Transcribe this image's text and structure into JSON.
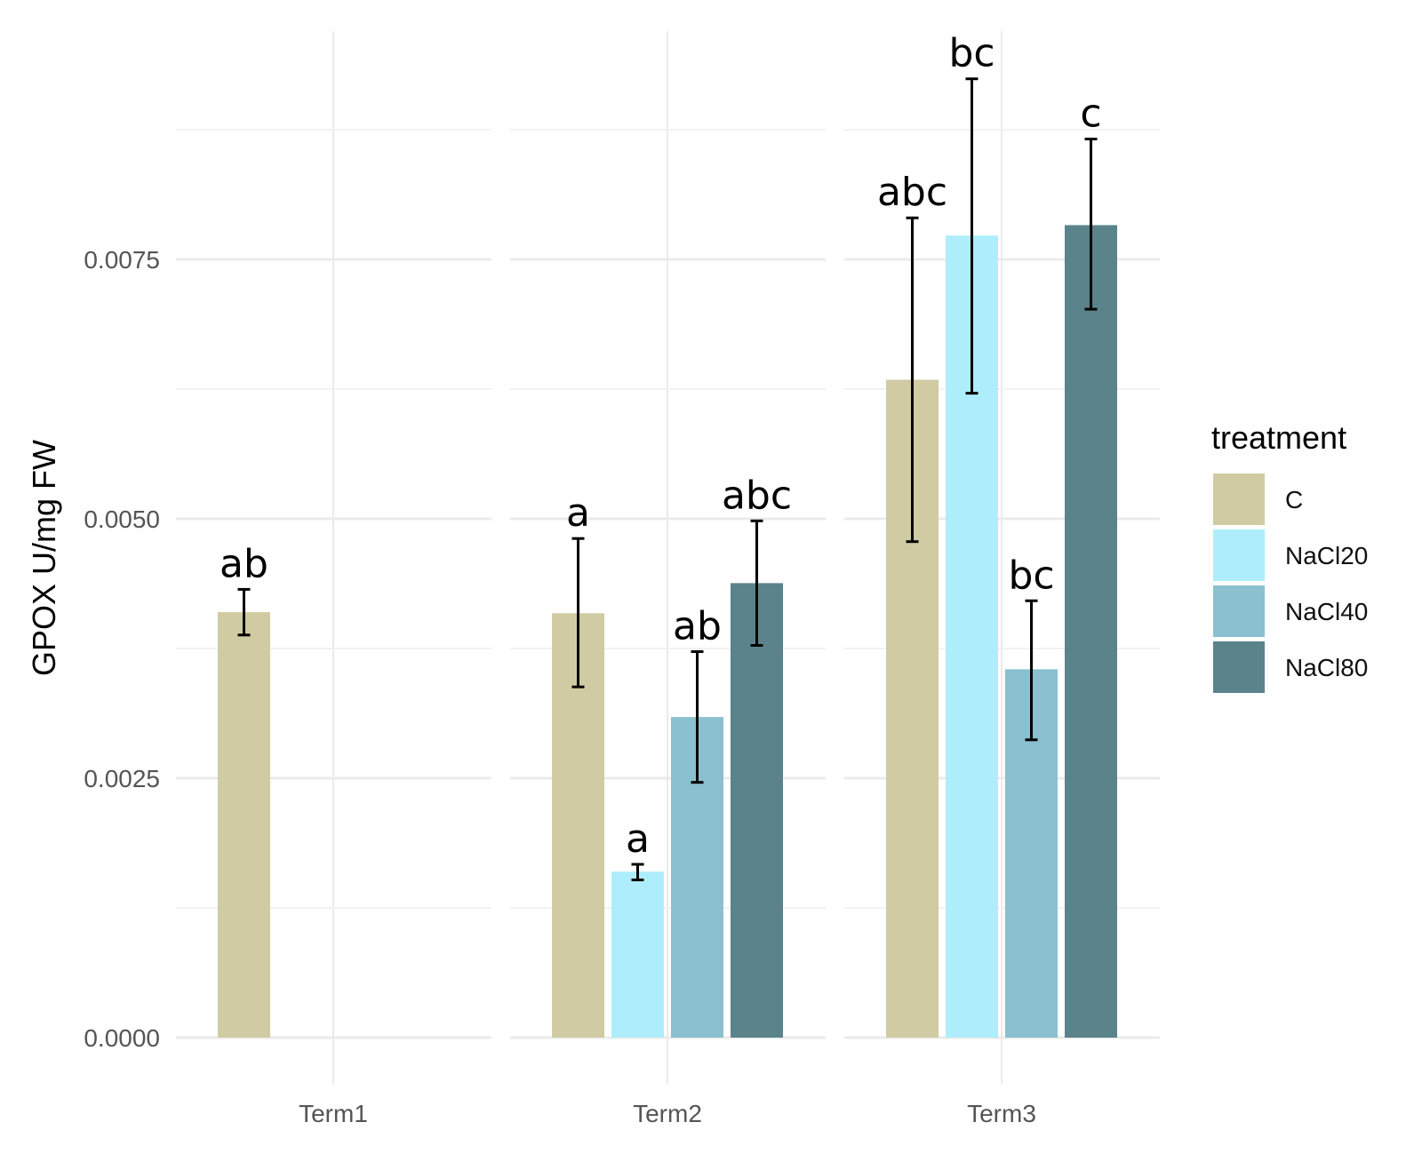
{
  "chart_data": {
    "type": "bar",
    "ylabel": "GPOX U/mg FW",
    "xlabel": "",
    "ylim": [
      0,
      0.0097
    ],
    "yticks": [
      "0.0000",
      "0.0025",
      "0.0050",
      "0.0075"
    ],
    "facets": [
      "Term1",
      "Term2",
      "Term3"
    ],
    "legend": {
      "title": "treatment",
      "position": "right",
      "items": [
        {
          "name": "C",
          "color": "#d0cba2"
        },
        {
          "name": "NaCl20",
          "color": "#aeeefc"
        },
        {
          "name": "NaCl40",
          "color": "#8ac0cf"
        },
        {
          "name": "NaCl80",
          "color": "#5b838b"
        }
      ]
    },
    "series": [
      {
        "name": "C",
        "values": [
          0.0041,
          0.00409,
          0.00634
        ],
        "err_low": [
          0.00388,
          0.00338,
          0.00478
        ],
        "err_high": [
          0.00432,
          0.00481,
          0.0079
        ],
        "labels": [
          "ab",
          "a",
          "abc"
        ]
      },
      {
        "name": "NaCl20",
        "values": [
          null,
          0.0016,
          0.00773
        ],
        "err_low": [
          null,
          0.00152,
          0.00621
        ],
        "err_high": [
          null,
          0.00167,
          0.00924
        ],
        "labels": [
          null,
          "a",
          "bc"
        ]
      },
      {
        "name": "NaCl40",
        "values": [
          null,
          0.00309,
          0.00355
        ],
        "err_low": [
          null,
          0.00246,
          0.00287
        ],
        "err_high": [
          null,
          0.00372,
          0.00421
        ],
        "labels": [
          null,
          "ab",
          "bc"
        ]
      },
      {
        "name": "NaCl80",
        "values": [
          null,
          0.00438,
          0.00783
        ],
        "err_low": [
          null,
          0.00378,
          0.00702
        ],
        "err_high": [
          null,
          0.00498,
          0.00866
        ],
        "labels": [
          null,
          "abc",
          "c"
        ]
      }
    ]
  }
}
